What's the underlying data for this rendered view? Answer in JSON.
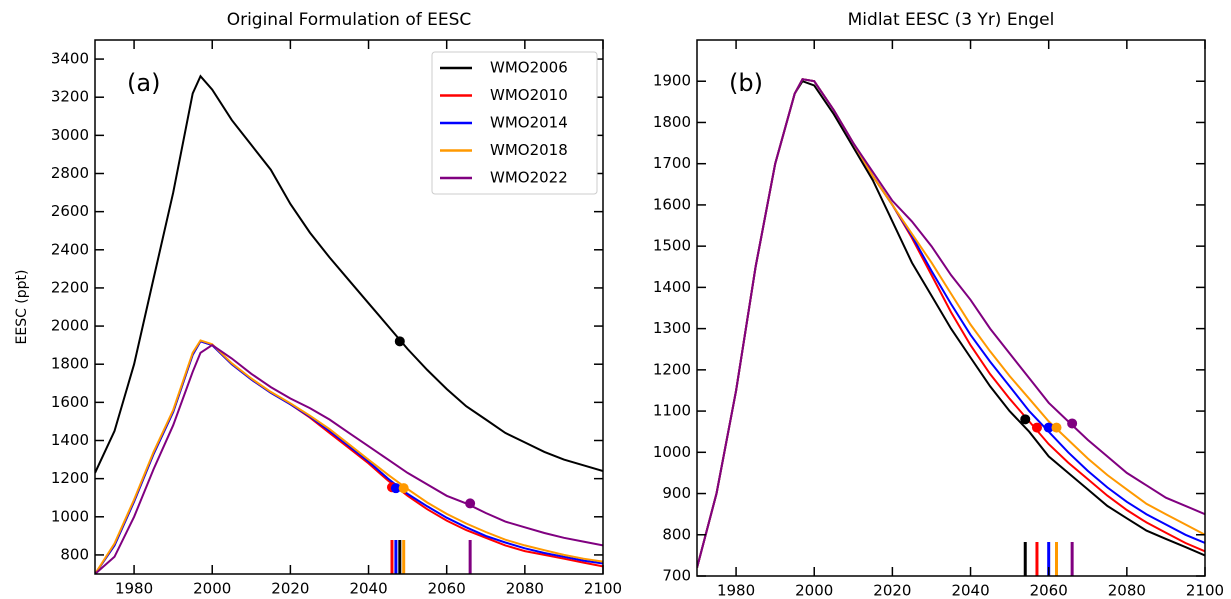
{
  "chart_data": [
    {
      "type": "line",
      "title": "Original Formulation of EESC",
      "ylabel": "EESC (ppt)",
      "panel_label": "(a)",
      "x": [
        1970,
        1975,
        1980,
        1985,
        1990,
        1995,
        1997,
        2000,
        2005,
        2010,
        2015,
        2020,
        2025,
        2030,
        2035,
        2040,
        2045,
        2050,
        2055,
        2060,
        2065,
        2070,
        2075,
        2080,
        2085,
        2090,
        2095,
        2100
      ],
      "xlim": [
        1970,
        2100
      ],
      "xticks": [
        1980,
        2000,
        2020,
        2040,
        2060,
        2080,
        2100
      ],
      "ylim": [
        700,
        3500
      ],
      "yticks": [
        800,
        1000,
        1200,
        1400,
        1600,
        1800,
        2000,
        2200,
        2400,
        2600,
        2800,
        3000,
        3200,
        3400
      ],
      "legend": "upper right",
      "series": [
        {
          "name": "WMO2006",
          "color": "#000000",
          "values": [
            1230,
            1450,
            1800,
            2250,
            2700,
            3220,
            3310,
            3240,
            3080,
            2950,
            2820,
            2640,
            2490,
            2360,
            2240,
            2120,
            2000,
            1880,
            1770,
            1670,
            1580,
            1510,
            1440,
            1390,
            1340,
            1300,
            1270,
            1240
          ],
          "return_year": 2048,
          "return_value": 1920
        },
        {
          "name": "WMO2010",
          "color": "#ff0000",
          "values": [
            700,
            850,
            1080,
            1330,
            1550,
            1850,
            1920,
            1900,
            1800,
            1720,
            1650,
            1590,
            1520,
            1440,
            1360,
            1280,
            1190,
            1110,
            1040,
            980,
            930,
            890,
            850,
            820,
            800,
            780,
            760,
            740
          ],
          "return_year": 2046,
          "return_value": 1155
        },
        {
          "name": "WMO2014",
          "color": "#0000ff",
          "values": [
            700,
            850,
            1080,
            1330,
            1550,
            1850,
            1920,
            1900,
            1800,
            1720,
            1650,
            1590,
            1525,
            1450,
            1370,
            1290,
            1200,
            1120,
            1055,
            995,
            945,
            900,
            865,
            835,
            810,
            790,
            770,
            755
          ],
          "return_year": 2047,
          "return_value": 1150
        },
        {
          "name": "WMO2018",
          "color": "#ff9900",
          "values": [
            700,
            860,
            1090,
            1340,
            1560,
            1860,
            1925,
            1905,
            1805,
            1725,
            1655,
            1595,
            1530,
            1460,
            1380,
            1300,
            1220,
            1145,
            1075,
            1015,
            965,
            920,
            880,
            850,
            825,
            800,
            780,
            765
          ],
          "return_year": 2049,
          "return_value": 1150
        },
        {
          "name": "WMO2022",
          "color": "#800080",
          "values": [
            700,
            790,
            1000,
            1250,
            1480,
            1760,
            1860,
            1900,
            1830,
            1750,
            1680,
            1620,
            1570,
            1510,
            1440,
            1370,
            1300,
            1230,
            1170,
            1110,
            1070,
            1020,
            975,
            945,
            915,
            890,
            870,
            850
          ],
          "return_year": 2066,
          "return_value": 1070
        }
      ]
    },
    {
      "type": "line",
      "title": "Midlat EESC (3 Yr) Engel",
      "panel_label": "(b)",
      "x": [
        1970,
        1975,
        1980,
        1985,
        1990,
        1995,
        1997,
        2000,
        2005,
        2010,
        2015,
        2020,
        2025,
        2030,
        2035,
        2040,
        2045,
        2050,
        2055,
        2060,
        2065,
        2070,
        2075,
        2080,
        2085,
        2090,
        2095,
        2100
      ],
      "xlim": [
        1970,
        2100
      ],
      "xticks": [
        1980,
        2000,
        2020,
        2040,
        2060,
        2080,
        2100
      ],
      "ylim": [
        700,
        2000
      ],
      "yticks": [
        700,
        800,
        900,
        1000,
        1100,
        1200,
        1300,
        1400,
        1500,
        1600,
        1700,
        1800,
        1900
      ],
      "series": [
        {
          "name": "WMO2006",
          "color": "#000000",
          "values": [
            720,
            900,
            1150,
            1450,
            1700,
            1870,
            1900,
            1890,
            1820,
            1740,
            1660,
            1560,
            1460,
            1380,
            1300,
            1230,
            1160,
            1100,
            1050,
            990,
            950,
            910,
            870,
            840,
            810,
            790,
            770,
            750
          ],
          "return_year": 2054,
          "return_value": 1080
        },
        {
          "name": "WMO2010",
          "color": "#ff0000",
          "values": [
            720,
            900,
            1150,
            1450,
            1700,
            1870,
            1905,
            1900,
            1830,
            1750,
            1670,
            1600,
            1520,
            1430,
            1340,
            1260,
            1190,
            1130,
            1075,
            1020,
            975,
            935,
            895,
            860,
            830,
            805,
            780,
            760
          ],
          "return_year": 2057,
          "return_value": 1060
        },
        {
          "name": "WMO2014",
          "color": "#0000ff",
          "values": [
            720,
            900,
            1150,
            1450,
            1700,
            1870,
            1905,
            1900,
            1830,
            1750,
            1670,
            1600,
            1525,
            1440,
            1360,
            1285,
            1220,
            1160,
            1100,
            1050,
            1000,
            955,
            915,
            880,
            850,
            825,
            800,
            780
          ],
          "return_year": 2060,
          "return_value": 1060
        },
        {
          "name": "WMO2018",
          "color": "#ff9900",
          "values": [
            720,
            900,
            1150,
            1450,
            1700,
            1870,
            1905,
            1900,
            1830,
            1750,
            1670,
            1600,
            1530,
            1460,
            1385,
            1310,
            1245,
            1185,
            1130,
            1075,
            1030,
            985,
            945,
            910,
            875,
            850,
            825,
            800
          ],
          "return_year": 2062,
          "return_value": 1060
        },
        {
          "name": "WMO2022",
          "color": "#800080",
          "values": [
            720,
            900,
            1150,
            1450,
            1700,
            1870,
            1905,
            1900,
            1830,
            1750,
            1680,
            1610,
            1560,
            1500,
            1430,
            1370,
            1300,
            1240,
            1180,
            1120,
            1075,
            1030,
            990,
            950,
            920,
            890,
            870,
            850
          ],
          "return_year": 2066,
          "return_value": 1070
        }
      ]
    }
  ]
}
